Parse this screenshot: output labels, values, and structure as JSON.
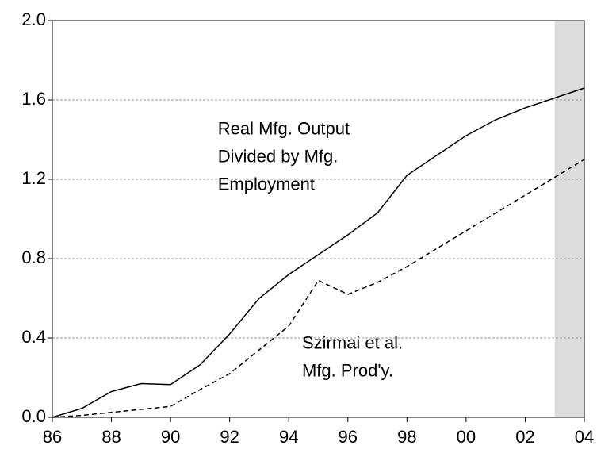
{
  "chart_data": {
    "type": "line",
    "x": [
      1986,
      1987,
      1988,
      1989,
      1990,
      1991,
      1992,
      1993,
      1994,
      1995,
      1996,
      1997,
      1998,
      1999,
      2000,
      2001,
      2002,
      2003,
      2004
    ],
    "series": [
      {
        "color": "#000000",
        "dash": "none",
        "values": [
          0.0,
          0.045,
          0.13,
          0.17,
          0.165,
          0.265,
          0.42,
          0.6,
          0.72,
          0.82,
          0.92,
          1.03,
          1.22,
          1.32,
          1.42,
          1.5,
          1.56,
          1.61,
          1.66
        ]
      },
      {
        "color": "#000000",
        "dash": "6,4",
        "values": [
          0.0,
          0.01,
          0.025,
          0.04,
          0.055,
          0.14,
          0.22,
          0.34,
          0.46,
          0.69,
          0.62,
          0.68,
          0.76,
          0.85,
          0.94,
          1.03,
          1.12,
          1.21,
          1.3
        ]
      }
    ],
    "xlim": [
      1986,
      2004
    ],
    "xticks": [
      {
        "value": 1986,
        "label": "86"
      },
      {
        "value": 1988,
        "label": "88"
      },
      {
        "value": 1990,
        "label": "90"
      },
      {
        "value": 1992,
        "label": "92"
      },
      {
        "value": 1994,
        "label": "94"
      },
      {
        "value": 1996,
        "label": "96"
      },
      {
        "value": 1998,
        "label": "98"
      },
      {
        "value": 2000,
        "label": "00"
      },
      {
        "value": 2002,
        "label": "02"
      },
      {
        "value": 2004,
        "label": "04"
      }
    ],
    "ylim": [
      0,
      2
    ],
    "yticks": [
      {
        "value": 0,
        "label": "0.0"
      },
      0.4,
      0.8,
      1.2,
      1.6,
      {
        "value": 2,
        "label": "2.0"
      }
    ],
    "grid": true,
    "shaded": [
      2003,
      2004
    ],
    "annotations": [
      {
        "lines": [
          "Real Mfg. Output",
          "Divided by Mfg.",
          "Employment"
        ],
        "x": 1991.6,
        "y": 1.45
      },
      {
        "lines": [
          "Szirmai et al.",
          "Mfg. Prod'y."
        ],
        "x": 1994.45,
        "y": 0.37
      }
    ]
  }
}
